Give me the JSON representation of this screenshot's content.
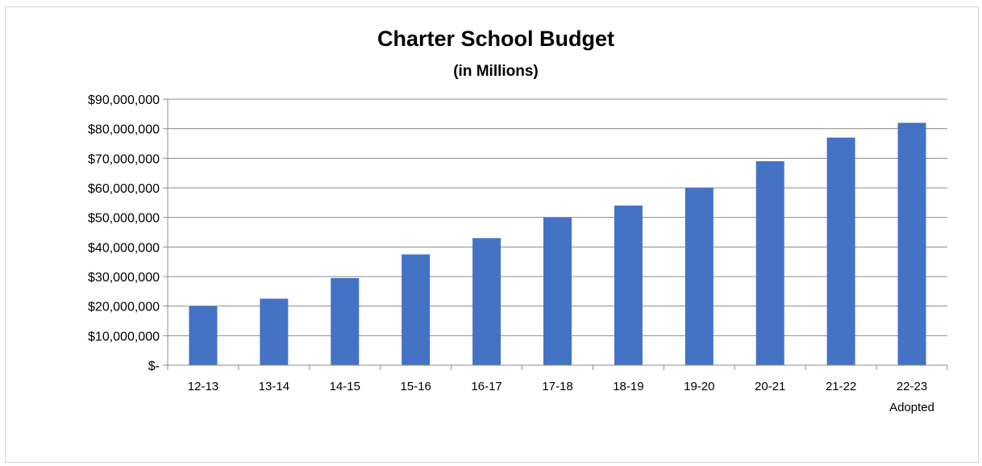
{
  "chart_data": {
    "type": "bar",
    "title": "Charter School Budget",
    "subtitle": "(in Millions)",
    "xlabel": "",
    "ylabel": "",
    "categories": [
      "12-13",
      "13-14",
      "14-15",
      "15-16",
      "16-17",
      "17-18",
      "18-19",
      "19-20",
      "20-21",
      "21-22",
      "22-23"
    ],
    "category_sublabels": [
      "",
      "",
      "",
      "",
      "",
      "",
      "",
      "",
      "",
      "",
      "Adopted"
    ],
    "values": [
      20000000,
      22500000,
      29500000,
      37500000,
      43000000,
      50000000,
      54000000,
      60000000,
      69000000,
      77000000,
      82000000
    ],
    "ylim": [
      0,
      90000000
    ],
    "yticks": [
      0,
      10000000,
      20000000,
      30000000,
      40000000,
      50000000,
      60000000,
      70000000,
      80000000,
      90000000
    ],
    "ytick_labels": [
      "$-",
      "$10,000,000",
      "$20,000,000",
      "$30,000,000",
      "$40,000,000",
      "$50,000,000",
      "$60,000,000",
      "$70,000,000",
      "$80,000,000",
      "$90,000,000"
    ],
    "grid": true,
    "legend": "none",
    "bar_color": "#4472c4"
  }
}
